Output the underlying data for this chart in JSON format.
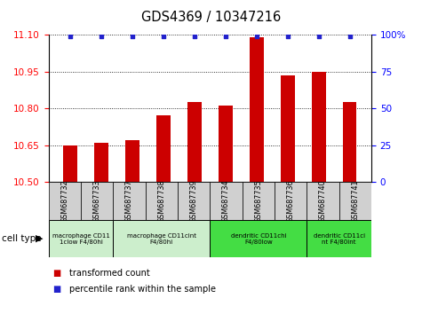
{
  "title": "GDS4369 / 10347216",
  "samples": [
    "GSM687732",
    "GSM687733",
    "GSM687737",
    "GSM687738",
    "GSM687739",
    "GSM687734",
    "GSM687735",
    "GSM687736",
    "GSM687740",
    "GSM687741"
  ],
  "bar_values": [
    10.65,
    10.66,
    10.67,
    10.77,
    10.825,
    10.81,
    11.09,
    10.935,
    10.95,
    10.825
  ],
  "percentile_values": [
    100,
    100,
    100,
    100,
    100,
    100,
    100,
    100,
    100,
    100
  ],
  "ylim_left": [
    10.5,
    11.1
  ],
  "ylim_right": [
    0,
    100
  ],
  "yticks_left": [
    10.5,
    10.65,
    10.8,
    10.95,
    11.1
  ],
  "yticks_right": [
    0,
    25,
    50,
    75,
    100
  ],
  "bar_color": "#cc0000",
  "percentile_color": "#2222cc",
  "cell_type_groups": [
    {
      "label": "macrophage CD11\n1clow F4/80hi",
      "start": 0,
      "end": 2,
      "color": "#cceecc"
    },
    {
      "label": "macrophage CD11cint\nF4/80hi",
      "start": 2,
      "end": 5,
      "color": "#cceecc"
    },
    {
      "label": "dendritic CD11chi\nF4/80low",
      "start": 5,
      "end": 8,
      "color": "#44dd44"
    },
    {
      "label": "dendritic CD11ci\nnt F4/80int",
      "start": 8,
      "end": 10,
      "color": "#44dd44"
    }
  ],
  "legend_items": [
    {
      "label": "transformed count",
      "color": "#cc0000"
    },
    {
      "label": "percentile rank within the sample",
      "color": "#2222cc"
    }
  ],
  "xlabel_cell_type": "cell type"
}
